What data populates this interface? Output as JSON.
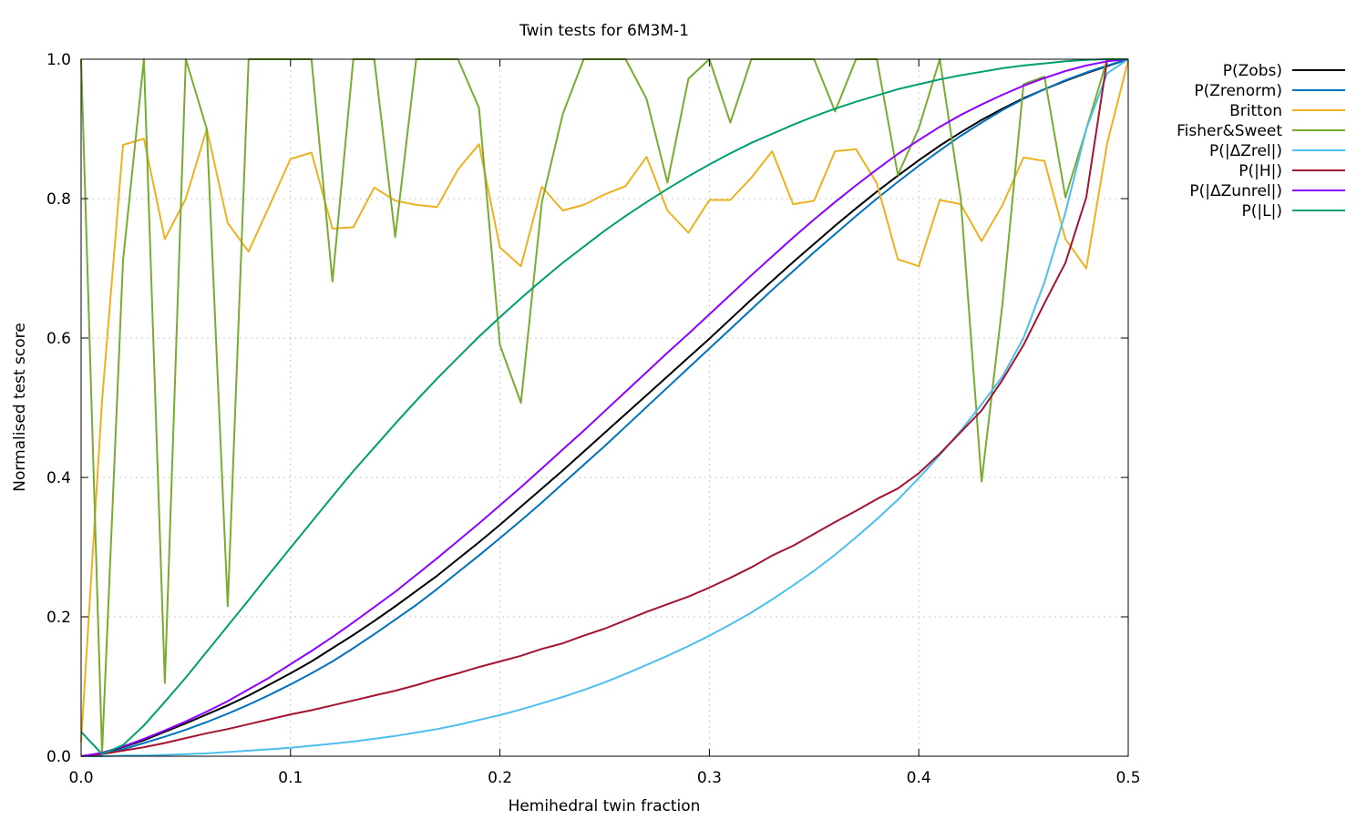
{
  "chart_data": {
    "type": "line",
    "title": "Twin tests for 6M3M-1",
    "xlabel": "Hemihedral twin fraction",
    "ylabel": "Normalised test score",
    "xlim": [
      0,
      0.5
    ],
    "ylim": [
      0,
      1
    ],
    "x_ticks": [
      "0.0",
      "0.1",
      "0.2",
      "0.3",
      "0.4",
      "0.5"
    ],
    "y_ticks": [
      "0.0",
      "0.2",
      "0.4",
      "0.6",
      "0.8",
      "1.0"
    ],
    "grid": true,
    "legend_position": "outside-right-top",
    "x": [
      0,
      0.01,
      0.02,
      0.03,
      0.04,
      0.05,
      0.06,
      0.07,
      0.08,
      0.09,
      0.1,
      0.11,
      0.12,
      0.13,
      0.14,
      0.15,
      0.16,
      0.17,
      0.18,
      0.19,
      0.2,
      0.21,
      0.22,
      0.23,
      0.24,
      0.25,
      0.26,
      0.27,
      0.28,
      0.29,
      0.3,
      0.31,
      0.32,
      0.33,
      0.34,
      0.35,
      0.36,
      0.37,
      0.38,
      0.39,
      0.4,
      0.41,
      0.42,
      0.43,
      0.44,
      0.45,
      0.46,
      0.47,
      0.48,
      0.49,
      0.5
    ],
    "series": [
      {
        "name": "P(Zobs)",
        "color": "#000000",
        "values": [
          0.0,
          0.004,
          0.013,
          0.023,
          0.035,
          0.047,
          0.06,
          0.073,
          0.087,
          0.103,
          0.119,
          0.136,
          0.155,
          0.174,
          0.194,
          0.215,
          0.237,
          0.259,
          0.283,
          0.307,
          0.332,
          0.358,
          0.384,
          0.41,
          0.437,
          0.464,
          0.491,
          0.518,
          0.545,
          0.572,
          0.599,
          0.627,
          0.655,
          0.682,
          0.709,
          0.735,
          0.761,
          0.786,
          0.81,
          0.833,
          0.855,
          0.876,
          0.895,
          0.913,
          0.929,
          0.944,
          0.957,
          0.969,
          0.98,
          0.99,
          1.0
        ]
      },
      {
        "name": "P(Zrenorm)",
        "color": "#0072bd",
        "values": [
          0.0,
          0.003,
          0.01,
          0.019,
          0.028,
          0.038,
          0.049,
          0.061,
          0.074,
          0.088,
          0.103,
          0.119,
          0.136,
          0.155,
          0.175,
          0.196,
          0.217,
          0.24,
          0.264,
          0.288,
          0.313,
          0.338,
          0.364,
          0.391,
          0.418,
          0.445,
          0.473,
          0.501,
          0.529,
          0.557,
          0.585,
          0.613,
          0.641,
          0.669,
          0.696,
          0.723,
          0.749,
          0.775,
          0.8,
          0.824,
          0.847,
          0.869,
          0.89,
          0.909,
          0.927,
          0.943,
          0.957,
          0.97,
          0.981,
          0.991,
          1.0
        ]
      },
      {
        "name": "Britton",
        "color": "#edb120",
        "values": [
          0.02,
          0.51,
          0.877,
          0.886,
          0.742,
          0.8,
          0.9,
          0.765,
          0.724,
          0.79,
          0.857,
          0.866,
          0.757,
          0.759,
          0.816,
          0.797,
          0.791,
          0.788,
          0.842,
          0.878,
          0.73,
          0.703,
          0.817,
          0.783,
          0.791,
          0.806,
          0.818,
          0.86,
          0.783,
          0.751,
          0.798,
          0.798,
          0.83,
          0.868,
          0.792,
          0.797,
          0.868,
          0.871,
          0.822,
          0.713,
          0.703,
          0.798,
          0.792,
          0.739,
          0.791,
          0.859,
          0.854,
          0.742,
          0.7,
          0.88,
          0.998
        ]
      },
      {
        "name": "Fisher&Sweet",
        "color": "#77ac30",
        "values": [
          1.0,
          0.005,
          0.711,
          1.0,
          0.105,
          1.0,
          0.9,
          0.215,
          1.0,
          1.0,
          1.0,
          1.0,
          0.681,
          1.0,
          1.0,
          0.745,
          1.0,
          1.0,
          1.0,
          0.93,
          0.59,
          0.507,
          0.795,
          0.921,
          1.0,
          1.0,
          1.0,
          0.943,
          0.823,
          0.972,
          1.0,
          0.909,
          1.0,
          1.0,
          1.0,
          1.0,
          0.925,
          1.0,
          1.0,
          0.834,
          0.901,
          1.0,
          0.8,
          0.394,
          0.65,
          0.964,
          0.975,
          0.802,
          0.9,
          1.0,
          1.0
        ]
      },
      {
        "name": "P(|ΔZrel|)",
        "color": "#4dbeee",
        "values": [
          0.0,
          0.0,
          0.001,
          0.001,
          0.002,
          0.003,
          0.004,
          0.006,
          0.008,
          0.01,
          0.012,
          0.015,
          0.018,
          0.021,
          0.025,
          0.029,
          0.034,
          0.039,
          0.045,
          0.052,
          0.059,
          0.067,
          0.076,
          0.085,
          0.095,
          0.106,
          0.118,
          0.131,
          0.144,
          0.158,
          0.173,
          0.189,
          0.206,
          0.225,
          0.245,
          0.266,
          0.289,
          0.314,
          0.34,
          0.368,
          0.399,
          0.432,
          0.467,
          0.505,
          0.545,
          0.6,
          0.68,
          0.78,
          0.9,
          0.98,
          1.0
        ]
      },
      {
        "name": "P(|H|)",
        "color": "#a2142f",
        "values": [
          0.0,
          0.003,
          0.008,
          0.013,
          0.019,
          0.026,
          0.033,
          0.039,
          0.046,
          0.053,
          0.06,
          0.066,
          0.073,
          0.08,
          0.087,
          0.094,
          0.102,
          0.111,
          0.119,
          0.128,
          0.136,
          0.144,
          0.154,
          0.162,
          0.173,
          0.183,
          0.195,
          0.207,
          0.218,
          0.229,
          0.242,
          0.256,
          0.271,
          0.288,
          0.302,
          0.319,
          0.336,
          0.352,
          0.369,
          0.384,
          0.406,
          0.434,
          0.465,
          0.496,
          0.54,
          0.59,
          0.65,
          0.708,
          0.802,
          1.0,
          1.0
        ]
      },
      {
        "name": "P(|ΔZunrel|)",
        "color": "#8f00ff",
        "values": [
          0.0,
          0.005,
          0.014,
          0.025,
          0.037,
          0.05,
          0.064,
          0.079,
          0.096,
          0.113,
          0.132,
          0.151,
          0.171,
          0.192,
          0.214,
          0.236,
          0.26,
          0.284,
          0.309,
          0.334,
          0.36,
          0.386,
          0.413,
          0.44,
          0.467,
          0.495,
          0.523,
          0.551,
          0.579,
          0.606,
          0.634,
          0.662,
          0.69,
          0.717,
          0.744,
          0.77,
          0.795,
          0.819,
          0.842,
          0.864,
          0.884,
          0.903,
          0.92,
          0.935,
          0.949,
          0.962,
          0.973,
          0.983,
          0.991,
          0.997,
          1.0
        ]
      },
      {
        "name": "P(|L|)",
        "color": "#009e73",
        "values": [
          0.035,
          0.003,
          0.016,
          0.044,
          0.078,
          0.113,
          0.15,
          0.187,
          0.224,
          0.262,
          0.299,
          0.336,
          0.373,
          0.409,
          0.443,
          0.477,
          0.51,
          0.542,
          0.572,
          0.602,
          0.63,
          0.657,
          0.683,
          0.708,
          0.731,
          0.754,
          0.775,
          0.795,
          0.814,
          0.832,
          0.849,
          0.865,
          0.88,
          0.893,
          0.906,
          0.918,
          0.929,
          0.939,
          0.948,
          0.957,
          0.964,
          0.971,
          0.977,
          0.982,
          0.987,
          0.991,
          0.994,
          0.997,
          0.999,
          1.0,
          1.0
        ]
      }
    ]
  }
}
